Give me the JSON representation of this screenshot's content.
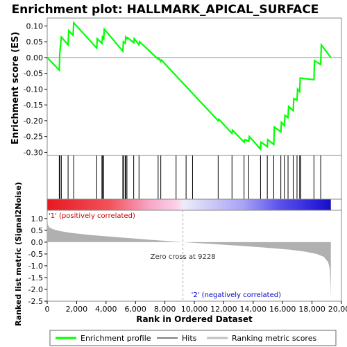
{
  "chart_data": {
    "type": "line",
    "title": "Enrichment plot: HALLMARK_APICAL_SURFACE",
    "es_panel": {
      "ylabel": "Enrichment score (ES)",
      "ylim": [
        -0.31,
        0.125
      ],
      "yticks": [
        0.1,
        0.05,
        0.0,
        -0.05,
        -0.1,
        -0.15,
        -0.2,
        -0.25,
        -0.3
      ],
      "ytick_labels": [
        "0.10",
        "0.05",
        "0.00",
        "-0.05",
        "-0.10",
        "-0.15",
        "-0.20",
        "-0.25",
        "-0.30"
      ],
      "series": [
        {
          "name": "Enrichment profile",
          "color": "#00ff00",
          "x": [
            0,
            820,
            860,
            960,
            1420,
            1460,
            1760,
            1800,
            3370,
            3400,
            3720,
            3760,
            3840,
            3880,
            5140,
            5180,
            5300,
            5340,
            5420,
            5460,
            5880,
            5920,
            6240,
            6280,
            7540,
            7580,
            7720,
            7760,
            11620,
            11660,
            12560,
            12600,
            13380,
            13420,
            13700,
            13740,
            14500,
            14540,
            14960,
            14990,
            15400,
            15440,
            15880,
            15920,
            16120,
            16160,
            16370,
            16410,
            16720,
            16760,
            16980,
            17020,
            17160,
            17200,
            18130,
            18170,
            18590,
            18630,
            19280
          ],
          "y": [
            0.0,
            -0.04,
            0.015,
            0.065,
            0.04,
            0.085,
            0.07,
            0.11,
            0.03,
            0.06,
            0.045,
            0.065,
            0.06,
            0.09,
            0.02,
            0.05,
            0.045,
            0.065,
            0.06,
            0.063,
            0.047,
            0.06,
            0.04,
            0.05,
            -0.005,
            -0.002,
            -0.012,
            -0.008,
            -0.2,
            -0.195,
            -0.24,
            -0.23,
            -0.268,
            -0.26,
            -0.265,
            -0.25,
            -0.29,
            -0.268,
            -0.282,
            -0.26,
            -0.275,
            -0.22,
            -0.235,
            -0.205,
            -0.215,
            -0.183,
            -0.19,
            -0.155,
            -0.168,
            -0.13,
            -0.135,
            -0.1,
            -0.108,
            -0.065,
            -0.07,
            -0.01,
            -0.022,
            0.04,
            0.0
          ]
        }
      ]
    },
    "hits": {
      "name": "Hits",
      "positions": [
        820,
        860,
        960,
        1420,
        1800,
        3370,
        3720,
        3760,
        3840,
        5140,
        5180,
        5300,
        5340,
        5420,
        5880,
        6240,
        7540,
        7720,
        8760,
        9440,
        9880,
        11620,
        12560,
        13380,
        13700,
        14500,
        14960,
        15400,
        15880,
        16120,
        16370,
        16720,
        16980,
        17160,
        17240,
        18130,
        18590
      ]
    },
    "color_bar": {
      "positive_color": "#ff0000",
      "negative_color": "#0000ff",
      "neutral_color": "#ffffff"
    },
    "metric_panel": {
      "name": "Ranking metric scores",
      "ylabel": "Ranked list metric (Signal2Noise)",
      "xlabel": "Rank in Ordered Dataset",
      "xlim": [
        0,
        20000
      ],
      "ylim": [
        -2.5,
        1.35
      ],
      "xticks": [
        0,
        2000,
        4000,
        6000,
        8000,
        10000,
        12000,
        14000,
        16000,
        18000,
        20000
      ],
      "xtick_labels": [
        "0",
        "2,000",
        "4,000",
        "6,000",
        "8,000",
        "10,000",
        "12,000",
        "14,000",
        "16,000",
        "18,000",
        "20,000"
      ],
      "yticks": [
        1.0,
        0.5,
        0.0,
        -0.5,
        -1.0,
        -1.5,
        -2.0,
        -2.5
      ],
      "ytick_labels": [
        "1.0",
        "0.5",
        "0.0",
        "-0.5",
        "-1.0",
        "-1.5",
        "-2.0",
        "-2.5"
      ],
      "n_genes": 19280,
      "curve_x": [
        0,
        40,
        150,
        400,
        800,
        1500,
        3000,
        5000,
        7000,
        9228,
        11000,
        13000,
        15000,
        16500,
        17500,
        18300,
        18800,
        19100,
        19200,
        19250,
        19280
      ],
      "curve_y": [
        1.3,
        0.75,
        0.62,
        0.55,
        0.48,
        0.4,
        0.3,
        0.2,
        0.1,
        0.0,
        -0.07,
        -0.15,
        -0.24,
        -0.32,
        -0.4,
        -0.5,
        -0.62,
        -0.85,
        -1.1,
        -1.7,
        -2.35
      ],
      "fill_color": "#b0b0b0",
      "zero_cross": 9228,
      "zero_cross_label": "Zero cross at 9228",
      "pos_label": "'1' (positively correlated)",
      "neg_label": "'2' (negatively correlated)"
    },
    "legend": [
      {
        "label": "Enrichment profile",
        "color": "#00ff00"
      },
      {
        "label": "Hits",
        "color": "#000000"
      },
      {
        "label": "Ranking metric scores",
        "color": "#c0c0c0"
      }
    ]
  }
}
